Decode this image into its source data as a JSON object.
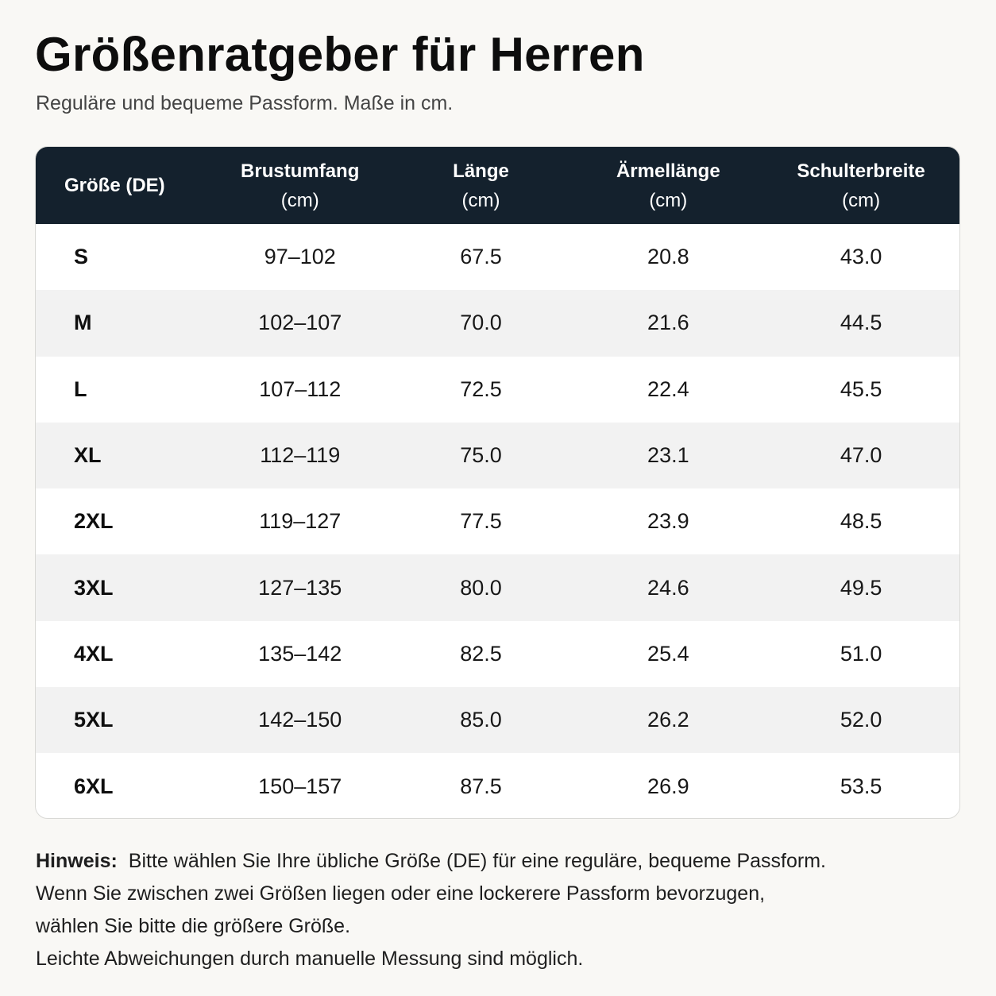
{
  "title": "Größenratgeber für Herren",
  "subtitle": "Reguläre und bequeme Passform. Maße in cm.",
  "table": {
    "headers": [
      {
        "label": "Größe (DE)",
        "unit": ""
      },
      {
        "label": "Brustumfang",
        "unit": "(cm)"
      },
      {
        "label": "Länge",
        "unit": "(cm)"
      },
      {
        "label": "Ärmellänge",
        "unit": "(cm)"
      },
      {
        "label": "Schulterbreite",
        "unit": "(cm)"
      }
    ],
    "rows": [
      {
        "size": "S",
        "chest": "97–102",
        "length": "67.5",
        "sleeve": "20.8",
        "shoulder": "43.0"
      },
      {
        "size": "M",
        "chest": "102–107",
        "length": "70.0",
        "sleeve": "21.6",
        "shoulder": "44.5"
      },
      {
        "size": "L",
        "chest": "107–112",
        "length": "72.5",
        "sleeve": "22.4",
        "shoulder": "45.5"
      },
      {
        "size": "XL",
        "chest": "112–119",
        "length": "75.0",
        "sleeve": "23.1",
        "shoulder": "47.0"
      },
      {
        "size": "2XL",
        "chest": "119–127",
        "length": "77.5",
        "sleeve": "23.9",
        "shoulder": "48.5"
      },
      {
        "size": "3XL",
        "chest": "127–135",
        "length": "80.0",
        "sleeve": "24.6",
        "shoulder": "49.5"
      },
      {
        "size": "4XL",
        "chest": "135–142",
        "length": "82.5",
        "sleeve": "25.4",
        "shoulder": "51.0"
      },
      {
        "size": "5XL",
        "chest": "142–150",
        "length": "85.0",
        "sleeve": "26.2",
        "shoulder": "52.0"
      },
      {
        "size": "6XL",
        "chest": "150–157",
        "length": "87.5",
        "sleeve": "26.9",
        "shoulder": "53.5"
      }
    ]
  },
  "note": {
    "label": "Hinweis:",
    "lines": [
      "Bitte wählen Sie Ihre übliche Größe (DE) für eine reguläre, bequeme Passform.",
      "Wenn Sie zwischen zwei Größen liegen oder eine lockerere Passform bevorzugen,",
      "wählen Sie bitte die größere Größe.",
      "Leichte Abweichungen durch manuelle Messung sind möglich."
    ]
  },
  "colors": {
    "header_bg": "#14212d",
    "page_bg": "#f9f8f5",
    "row_alt_bg": "#f2f2f2"
  }
}
